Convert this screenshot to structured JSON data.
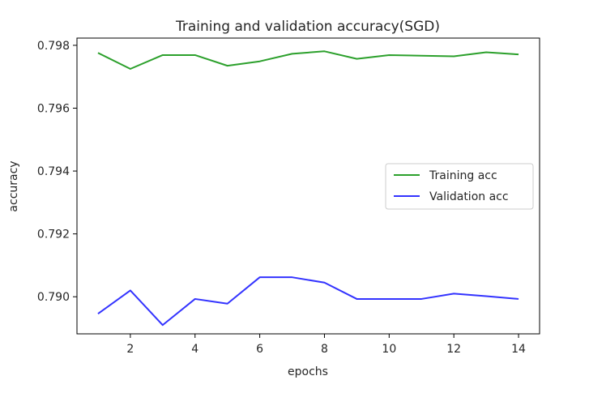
{
  "chart_data": {
    "type": "line",
    "title": "Training and validation accuracy(SGD)",
    "xlabel": "epochs",
    "ylabel": "accuracy",
    "xlim": [
      0.35,
      14.65
    ],
    "ylim": [
      0.78882,
      0.79823
    ],
    "x_ticks": [
      2,
      4,
      6,
      8,
      10,
      12,
      14
    ],
    "y_ticks": [
      0.79,
      0.792,
      0.794,
      0.796,
      0.798
    ],
    "y_tick_labels": [
      "0.790",
      "0.792",
      "0.794",
      "0.796",
      "0.798"
    ],
    "grid": false,
    "legend_position": "center-right",
    "x": [
      1,
      2,
      3,
      4,
      5,
      6,
      7,
      8,
      9,
      10,
      11,
      12,
      13,
      14
    ],
    "series": [
      {
        "name": "Training acc",
        "color": "#2ca02c",
        "values": [
          0.79776,
          0.79725,
          0.79769,
          0.79769,
          0.79735,
          0.79749,
          0.79773,
          0.79781,
          0.79757,
          0.79769,
          0.79767,
          0.79765,
          0.79778,
          0.79771
        ]
      },
      {
        "name": "Validation acc",
        "color": "#3333ff",
        "values": [
          0.78946,
          0.7902,
          0.7891,
          0.78993,
          0.78978,
          0.79062,
          0.79062,
          0.79045,
          0.78993,
          0.78993,
          0.78993,
          0.7901,
          0.79002,
          0.78993
        ]
      }
    ]
  }
}
